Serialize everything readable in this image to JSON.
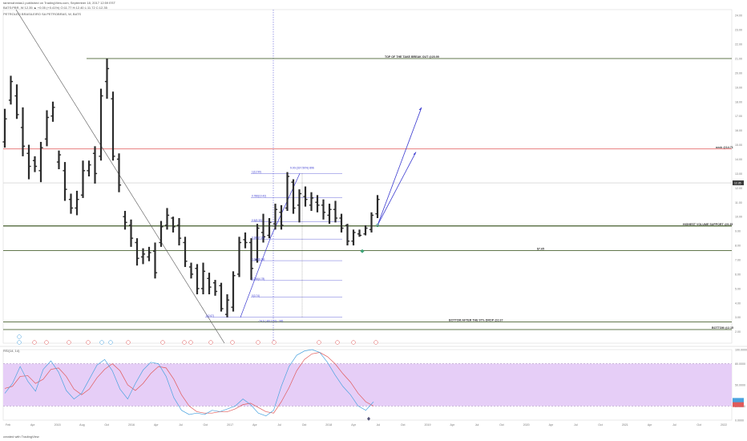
{
  "header": {
    "line1": "tamirnahmias1 published on TradingView.com, September 18, 2017 12:59 EST",
    "line2": "BATS:PBR, W  12.35 ▲ +0.05 (+0.41%)  O:11.77 H:12.40 L:11.72 C:12.35",
    "line3": "PETROLEO BRASILEIRO SA PETROBRAS, W, BATS"
  },
  "footer": {
    "text": "created with  TradingView"
  },
  "indicator_label": "RSI(14, 14)",
  "colors": {
    "bar": "#2b2b2b",
    "hline": "#2e4a12",
    "red_line": "#e05050",
    "fib": "#3b3bd0",
    "arrow": "#3b3bd0",
    "stoch_k": "#4aa3df",
    "stoch_d": "#e05a5a",
    "band": "#e6cef7",
    "marker": "#3fa57a"
  },
  "chart_data": {
    "type": "bar",
    "y_axis": {
      "ylim": [
        1.2,
        24.4
      ],
      "ticks": [
        "24.00",
        "23.00",
        "22.00",
        "21.00",
        "20.00",
        "19.00",
        "18.00",
        "17.00",
        "16.00",
        "15.00",
        "14.00",
        "13.00",
        "12.00",
        "11.00",
        "10.00",
        "9.00",
        "8.00",
        "7.00",
        "6.00",
        "5.00",
        "4.00",
        "3.00",
        "2.00",
        "1.00"
      ]
    },
    "x_axis": {
      "ticks": [
        "Feb",
        "Apr",
        "2015",
        "Aug",
        "Oct",
        "2016",
        "Apr",
        "Jul",
        "Oct",
        "2017",
        "Apr",
        "Jul",
        "Oct",
        "2018",
        "Apr",
        "Jul",
        "Oct",
        "2019",
        "Apr",
        "Jul",
        "Oct",
        "2020",
        "Apr",
        "Jul",
        "Oct",
        "2021",
        "Apr",
        "Jul",
        "Oct",
        "2022"
      ]
    },
    "bars": [
      {
        "h": 17.5,
        "l": 14.8,
        "o": 15.2,
        "c": 16.8
      },
      {
        "h": 19.8,
        "l": 17.8,
        "o": 18.1,
        "c": 19.4
      },
      {
        "h": 19.2,
        "l": 16.8,
        "o": 18.4,
        "c": 17.1
      },
      {
        "h": 17.6,
        "l": 14.2,
        "o": 16.2,
        "c": 14.9
      },
      {
        "h": 15.0,
        "l": 12.6,
        "o": 14.4,
        "c": 13.5
      },
      {
        "h": 14.2,
        "l": 13.1,
        "o": 13.9,
        "c": 13.5
      },
      {
        "h": 15.2,
        "l": 12.4,
        "o": 13.2,
        "c": 14.8
      },
      {
        "h": 17.4,
        "l": 14.9,
        "o": 15.4,
        "c": 16.9
      },
      {
        "h": 18.0,
        "l": 16.6,
        "o": 17.0,
        "c": 17.6
      },
      {
        "h": 14.6,
        "l": 13.3,
        "o": 13.8,
        "c": 14.3
      },
      {
        "h": 13.8,
        "l": 11.1,
        "o": 13.2,
        "c": 11.9
      },
      {
        "h": 11.6,
        "l": 10.2,
        "o": 11.2,
        "c": 10.6
      },
      {
        "h": 11.8,
        "l": 10.1,
        "o": 10.6,
        "c": 11.2
      },
      {
        "h": 13.9,
        "l": 11.3,
        "o": 11.5,
        "c": 13.2
      },
      {
        "h": 13.9,
        "l": 12.8,
        "o": 13.2,
        "c": 13.6
      },
      {
        "h": 14.9,
        "l": 12.3,
        "o": 14.4,
        "c": 13.0
      },
      {
        "h": 18.9,
        "l": 13.9,
        "o": 14.2,
        "c": 18.4
      },
      {
        "h": 21.0,
        "l": 18.2,
        "o": 19.4,
        "c": 20.3
      },
      {
        "h": 18.7,
        "l": 13.9,
        "o": 18.2,
        "c": 14.2
      },
      {
        "h": 14.4,
        "l": 11.7,
        "o": 14.0,
        "c": 12.2
      },
      {
        "h": 10.4,
        "l": 9.1,
        "o": 10.0,
        "c": 9.6
      },
      {
        "h": 9.8,
        "l": 7.9,
        "o": 9.4,
        "c": 8.5
      },
      {
        "h": 8.5,
        "l": 6.6,
        "o": 8.2,
        "c": 7.1
      },
      {
        "h": 7.8,
        "l": 6.7,
        "o": 7.2,
        "c": 7.4
      },
      {
        "h": 7.9,
        "l": 6.9,
        "o": 7.2,
        "c": 7.5
      },
      {
        "h": 8.2,
        "l": 5.7,
        "o": 7.6,
        "c": 6.1
      },
      {
        "h": 9.7,
        "l": 7.9,
        "o": 8.2,
        "c": 9.3
      },
      {
        "h": 10.6,
        "l": 9.1,
        "o": 9.4,
        "c": 10.1
      },
      {
        "h": 10.0,
        "l": 8.9,
        "o": 9.9,
        "c": 9.3
      },
      {
        "h": 9.9,
        "l": 8.0,
        "o": 9.4,
        "c": 8.5
      },
      {
        "h": 8.6,
        "l": 6.5,
        "o": 8.2,
        "c": 6.9
      },
      {
        "h": 6.8,
        "l": 5.7,
        "o": 6.5,
        "c": 6.0
      },
      {
        "h": 6.7,
        "l": 4.6,
        "o": 6.4,
        "c": 5.0
      },
      {
        "h": 6.8,
        "l": 4.6,
        "o": 5.0,
        "c": 6.2
      },
      {
        "h": 6.1,
        "l": 4.6,
        "o": 5.7,
        "c": 5.1
      },
      {
        "h": 5.6,
        "l": 4.5,
        "o": 5.4,
        "c": 4.8
      },
      {
        "h": 5.4,
        "l": 3.4,
        "o": 5.2,
        "c": 3.6
      },
      {
        "h": 4.6,
        "l": 3.0,
        "o": 3.2,
        "c": 4.2
      },
      {
        "h": 6.2,
        "l": 3.4,
        "o": 3.7,
        "c": 5.9
      },
      {
        "h": 8.6,
        "l": 5.8,
        "o": 6.0,
        "c": 8.2
      },
      {
        "h": 8.9,
        "l": 7.8,
        "o": 8.4,
        "c": 8.2
      },
      {
        "h": 8.5,
        "l": 5.6,
        "o": 8.2,
        "c": 6.4
      },
      {
        "h": 9.5,
        "l": 6.8,
        "o": 7.0,
        "c": 9.2
      },
      {
        "h": 10.2,
        "l": 8.2,
        "o": 8.9,
        "c": 8.6
      },
      {
        "h": 9.9,
        "l": 8.5,
        "o": 8.7,
        "c": 9.6
      },
      {
        "h": 10.9,
        "l": 9.1,
        "o": 9.5,
        "c": 10.5
      },
      {
        "h": 10.8,
        "l": 9.1,
        "o": 10.3,
        "c": 9.4
      },
      {
        "h": 13.1,
        "l": 10.4,
        "o": 10.6,
        "c": 12.8
      },
      {
        "h": 12.6,
        "l": 10.2,
        "o": 12.4,
        "c": 10.6
      },
      {
        "h": 11.9,
        "l": 9.6,
        "o": 10.8,
        "c": 11.6
      },
      {
        "h": 12.1,
        "l": 10.7,
        "o": 11.4,
        "c": 11.2
      },
      {
        "h": 11.7,
        "l": 10.4,
        "o": 10.8,
        "c": 11.3
      },
      {
        "h": 11.5,
        "l": 10.3,
        "o": 11.0,
        "c": 10.8
      },
      {
        "h": 11.2,
        "l": 9.8,
        "o": 10.8,
        "c": 10.3
      },
      {
        "h": 10.9,
        "l": 9.5,
        "o": 10.1,
        "c": 10.5
      },
      {
        "h": 11.1,
        "l": 9.6,
        "o": 10.5,
        "c": 9.9
      },
      {
        "h": 10.2,
        "l": 8.9,
        "o": 9.9,
        "c": 9.2
      },
      {
        "h": 9.5,
        "l": 8.0,
        "o": 9.4,
        "c": 8.3
      },
      {
        "h": 9.1,
        "l": 8.0,
        "o": 8.3,
        "c": 8.9
      },
      {
        "h": 9.1,
        "l": 8.6,
        "o": 8.8,
        "c": 8.7
      },
      {
        "h": 9.4,
        "l": 8.7,
        "o": 8.8,
        "c": 9.2
      },
      {
        "h": 10.3,
        "l": 8.9,
        "o": 9.1,
        "c": 10.1
      },
      {
        "h": 11.5,
        "l": 9.9,
        "o": 10.2,
        "c": 11.2
      }
    ],
    "horizontal_levels": [
      {
        "price": 21.0,
        "label": "TOP OF THE TAKE BREAK OUT @20.99",
        "color": "hline"
      },
      {
        "price": 14.71,
        "label": "neck @14.71",
        "color": "red_line"
      },
      {
        "price": 9.35,
        "label": "HIGHEST VOLUME SUPPORT @9.35",
        "color": "hline"
      },
      {
        "price": 7.65,
        "label": "$7.65",
        "color": "hline"
      },
      {
        "price": 2.67,
        "label": "BOTTOM AFTER THE 97% DROP @2.67",
        "color": "hline"
      },
      {
        "price": 2.15,
        "label": "BOTTOM @2.15",
        "color": "hline"
      }
    ],
    "last_price": {
      "value": 12.35,
      "label": "12.35"
    },
    "fibonacci": {
      "levels": [
        {
          "price": 13.0,
          "label": "1(12.90)"
        },
        {
          "price": 11.33,
          "label": "0.786(10.42)"
        },
        {
          "price": 9.64,
          "label": "0.5(8.30)"
        },
        {
          "price": 8.44,
          "label": "0.382(7.35)"
        },
        {
          "price": 6.94,
          "label": "0.236(6.18)"
        },
        {
          "price": 5.56,
          "label": "0.236(4.78)"
        },
        {
          "price": 4.4,
          "label": "0(3.74)"
        },
        {
          "price": 3.0,
          "label": "0(2.67)"
        }
      ],
      "range_label_top": "9.00 (337.50%) 896",
      "range_label_bottom": "-74.0 (-80.17%) -745"
    },
    "oscillator": {
      "ylim": [
        0,
        100
      ],
      "band": [
        20,
        80
      ],
      "ticks": [
        "100.0000",
        "80.0000",
        "50.0000",
        "20.0000",
        "0.0000"
      ],
      "k": [
        38,
        52,
        76,
        55,
        41,
        72,
        84,
        68,
        42,
        30,
        38,
        58,
        78,
        86,
        70,
        44,
        30,
        52,
        71,
        82,
        80,
        62,
        32,
        14,
        8,
        10,
        8,
        14,
        12,
        16,
        20,
        30,
        22,
        10,
        6,
        14,
        48,
        76,
        92,
        98,
        100,
        96,
        82,
        64,
        48,
        36,
        20,
        14,
        26
      ],
      "d": [
        45,
        48,
        62,
        63,
        52,
        58,
        72,
        74,
        62,
        44,
        36,
        44,
        60,
        72,
        80,
        70,
        50,
        42,
        52,
        66,
        76,
        74,
        58,
        36,
        20,
        12,
        10,
        10,
        12,
        12,
        16,
        22,
        24,
        18,
        12,
        10,
        26,
        46,
        70,
        86,
        94,
        96,
        90,
        80,
        66,
        54,
        38,
        26,
        20
      ]
    }
  }
}
